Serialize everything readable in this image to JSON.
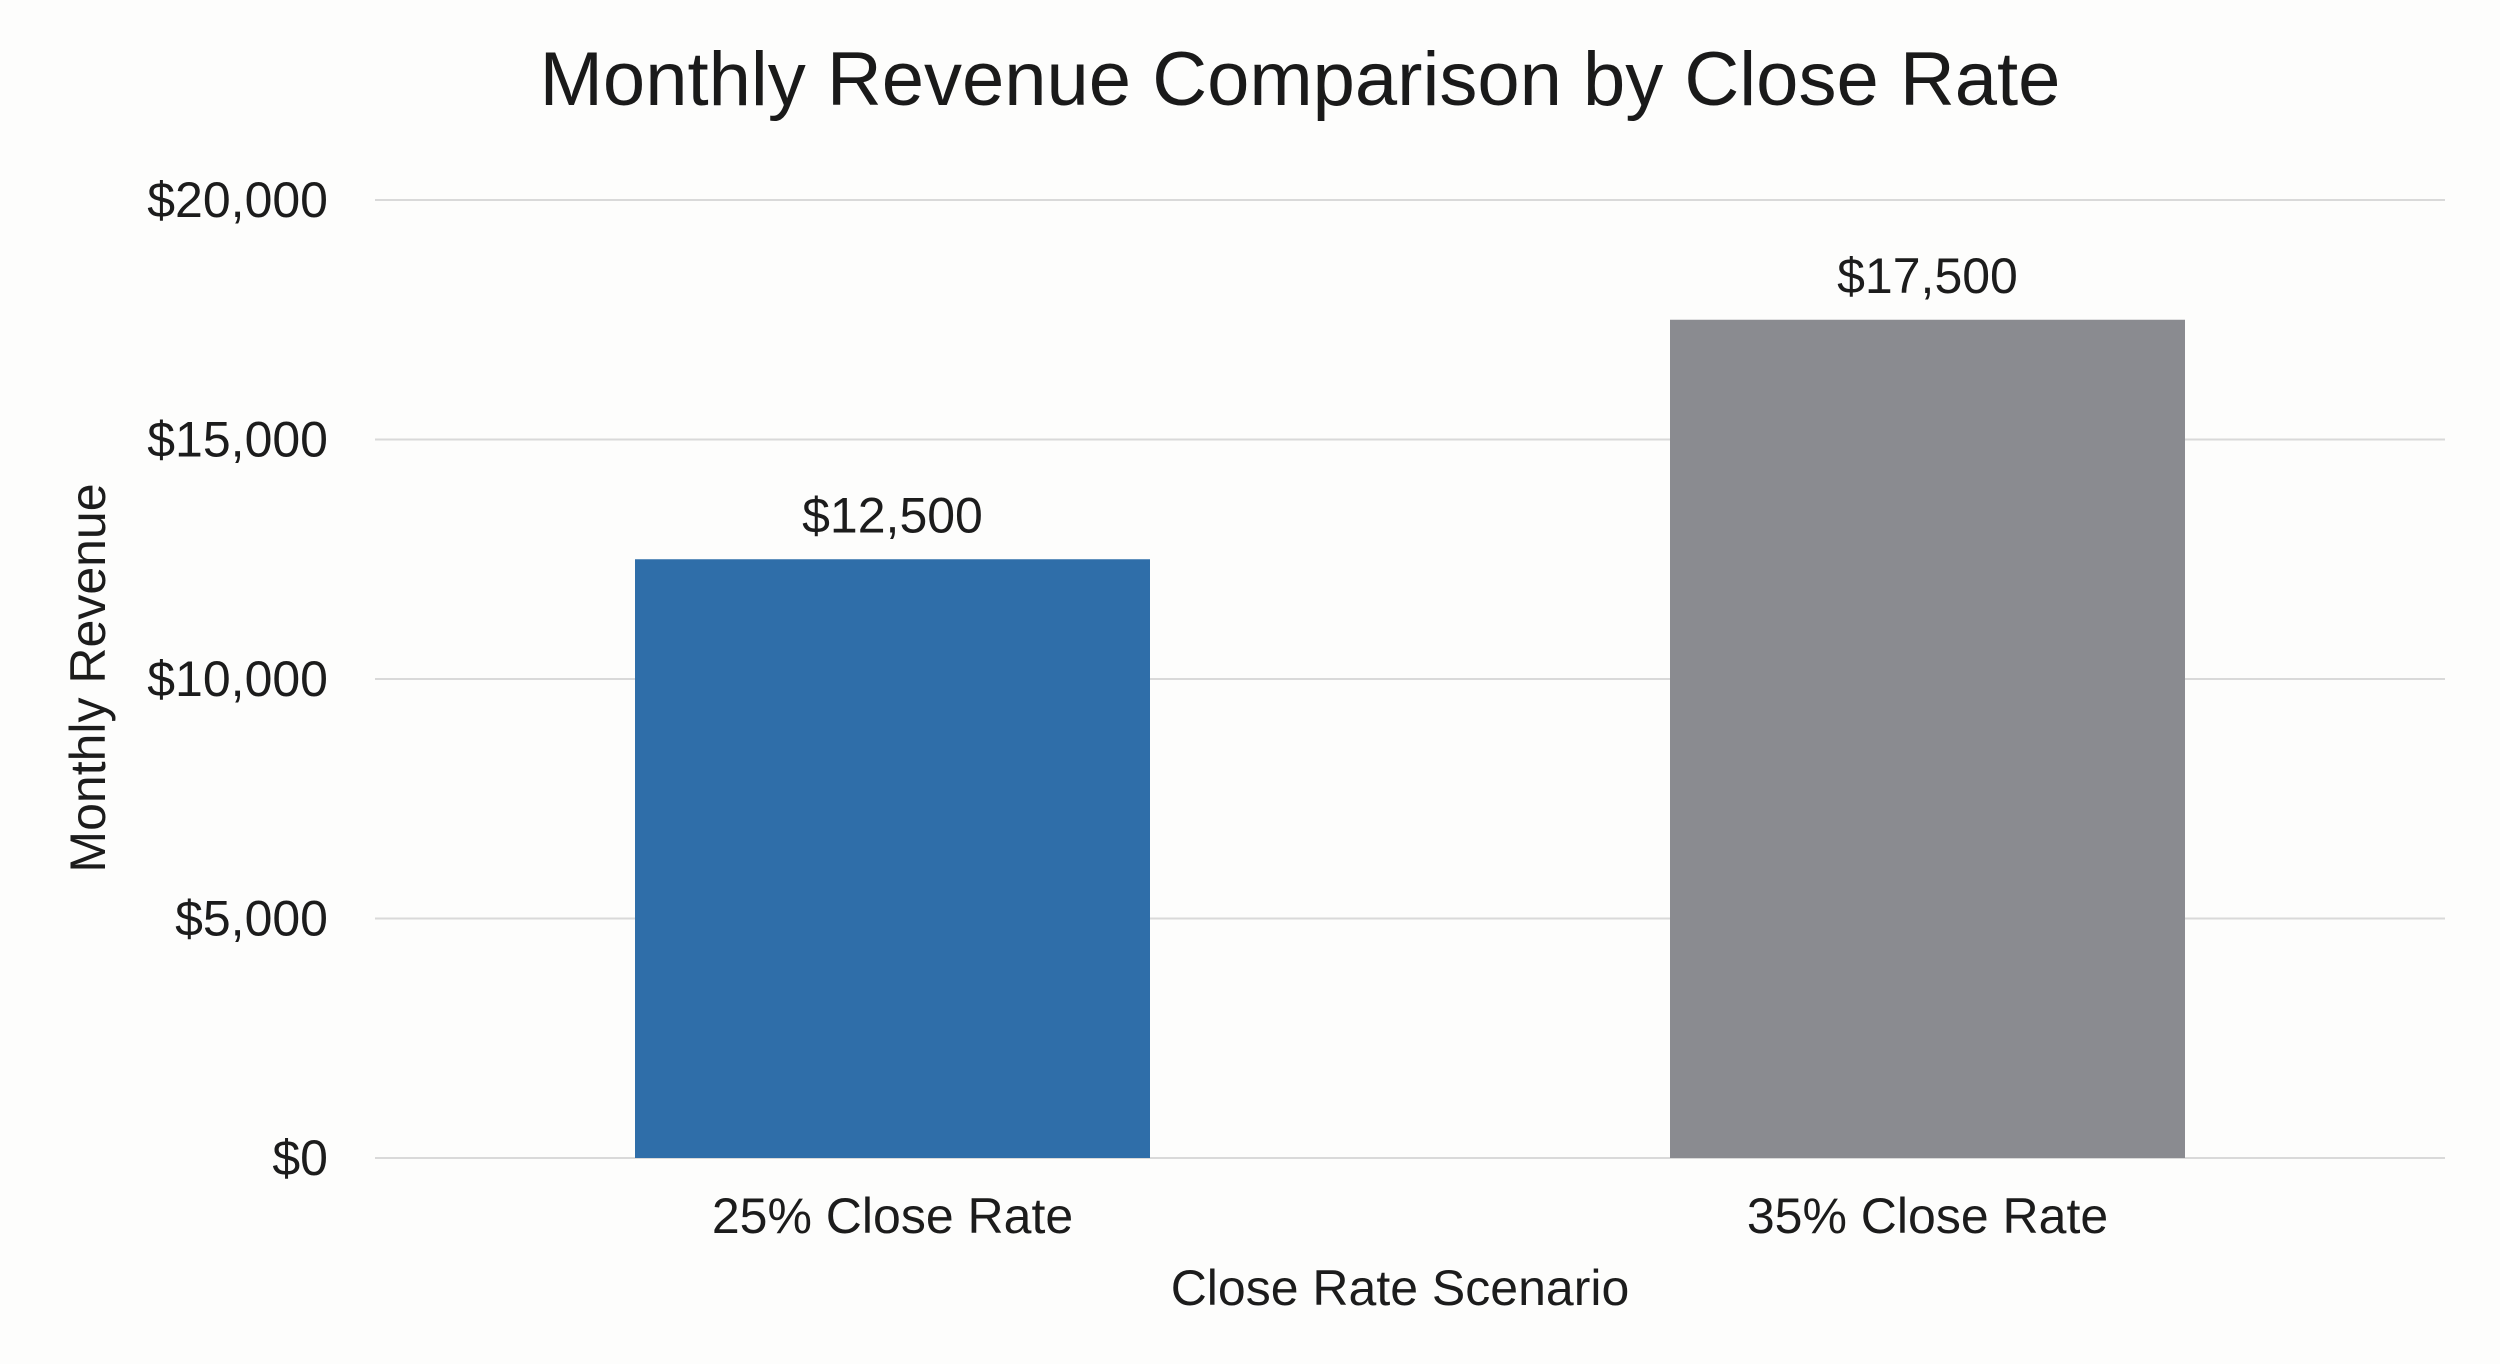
{
  "chart_data": {
    "type": "bar",
    "title": "Monthly Revenue Comparison by Close Rate",
    "xlabel": "Close Rate Scenario",
    "ylabel": "Monthly Revenue",
    "categories": [
      "25% Close Rate",
      "35% Close Rate"
    ],
    "values": [
      12500,
      17500
    ],
    "value_labels": [
      "$12,500",
      "$17,500"
    ],
    "colors": [
      "#2f6ea9",
      "#8a8b90"
    ],
    "ylim": [
      0,
      20000
    ],
    "yticks": [
      0,
      5000,
      10000,
      15000,
      20000
    ],
    "ytick_labels": [
      "$0",
      "$5,000",
      "$10,000",
      "$15,000",
      "$20,000"
    ],
    "grid": true,
    "legend": "none"
  }
}
